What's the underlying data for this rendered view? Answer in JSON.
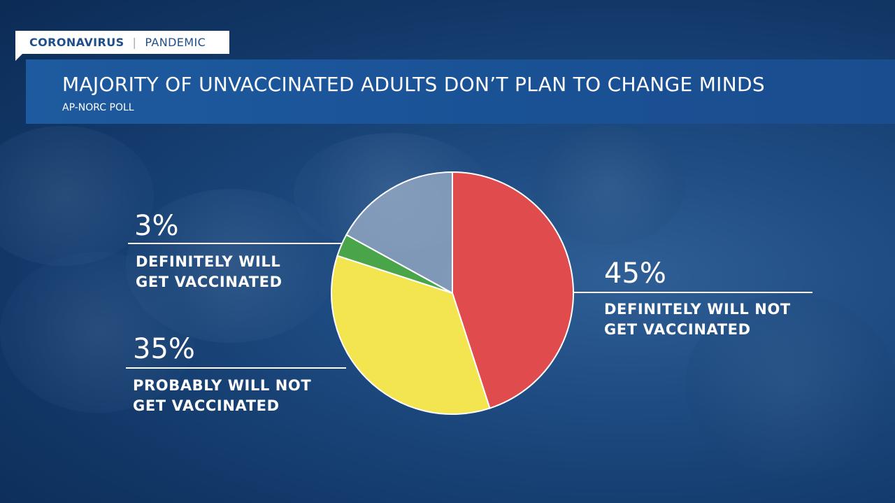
{
  "header": {
    "tag_primary": "CORONAVIRUS",
    "tag_separator": "|",
    "tag_secondary": "PANDEMIC",
    "title": "MAJORITY OF UNVACCINATED ADULTS DON’T PLAN TO CHANGE MINDS",
    "subtitle": "AP-NORC POLL"
  },
  "colors": {
    "accent": "#1e5a9f"
  },
  "chart_data": {
    "type": "pie",
    "slices": [
      {
        "label": "DEFINITELY WILL NOT GET VACCINATED",
        "label_lines": [
          "DEFINITELY WILL NOT",
          "GET VACCINATED"
        ],
        "display": "45%",
        "value": 45,
        "color": "#e04b4e"
      },
      {
        "label": "PROBABLY WILL NOT GET VACCINATED",
        "label_lines": [
          "PROBABLY WILL NOT",
          "GET VACCINATED"
        ],
        "display": "35%",
        "value": 35,
        "color": "#f2e54f"
      },
      {
        "label": "DEFINITELY WILL GET VACCINATED",
        "label_lines": [
          "DEFINITELY WILL",
          "GET VACCINATED"
        ],
        "display": "3%",
        "value": 3,
        "color": "#4aa54a"
      },
      {
        "label": "",
        "label_lines": [],
        "display": "",
        "value": 17,
        "color": "#9fb0c8"
      }
    ]
  }
}
